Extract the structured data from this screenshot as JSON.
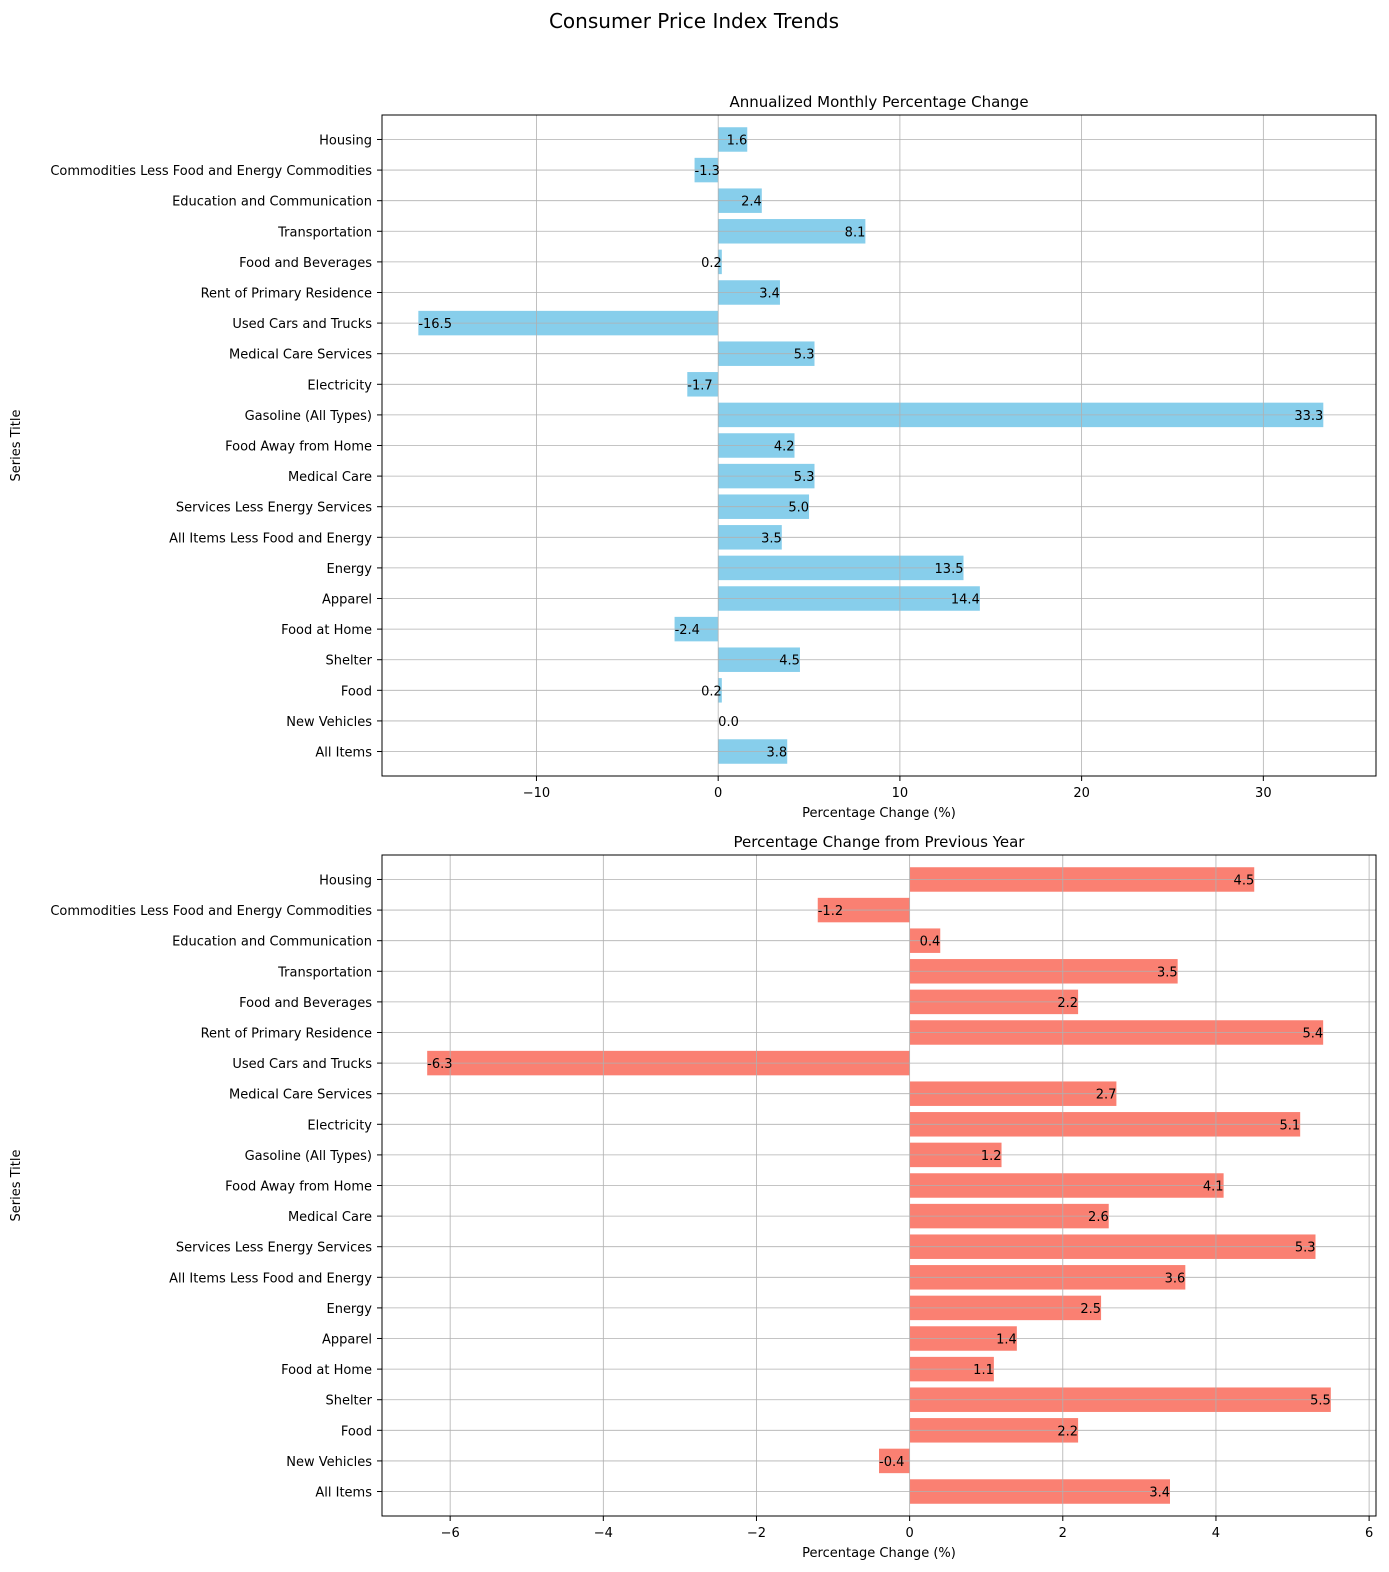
{
  "figure_title": "Consumer Price Index Trends",
  "chart_data": [
    {
      "type": "bar",
      "orientation": "horizontal",
      "title": "Annualized Monthly Percentage Change",
      "xlabel": "Percentage Change (%)",
      "ylabel": "Series Title",
      "color": "#87ceeb",
      "xlim": [
        -18.5,
        36.2
      ],
      "xticks": [
        -10,
        0,
        10,
        20,
        30
      ],
      "xtick_labels": [
        "−10",
        "0",
        "10",
        "20",
        "30"
      ],
      "grid": true,
      "categories": [
        "All Items",
        "New Vehicles",
        "Food",
        "Shelter",
        "Food at Home",
        "Apparel",
        "Energy",
        "All Items Less Food and Energy",
        "Services Less Energy Services",
        "Medical Care",
        "Food Away from Home",
        "Gasoline (All Types)",
        "Electricity",
        "Medical Care Services",
        "Used Cars and Trucks",
        "Rent of Primary Residence",
        "Food and Beverages",
        "Transportation",
        "Education and Communication",
        "Commodities Less Food and Energy Commodities",
        "Housing"
      ],
      "values": [
        3.8,
        0.0,
        0.2,
        4.5,
        -2.4,
        14.4,
        13.5,
        3.5,
        5.0,
        5.3,
        4.2,
        33.3,
        -1.7,
        5.3,
        -16.5,
        3.4,
        0.2,
        8.1,
        2.4,
        -1.3,
        1.6
      ],
      "value_labels": [
        "3.8",
        "0.0",
        "0.2",
        "4.5",
        "-2.4",
        "14.4",
        "13.5",
        "3.5",
        "5.0",
        "5.3",
        "4.2",
        "33.3",
        "-1.7",
        "5.3",
        "-16.5",
        "3.4",
        "0.2",
        "8.1",
        "2.4",
        "-1.3",
        "1.6"
      ]
    },
    {
      "type": "bar",
      "orientation": "horizontal",
      "title": "Percentage Change from Previous Year",
      "xlabel": "Percentage Change (%)",
      "ylabel": "Series Title",
      "color": "#fa8072",
      "xlim": [
        -6.89,
        6.09
      ],
      "xticks": [
        -6,
        -4,
        -2,
        0,
        2,
        4,
        6
      ],
      "xtick_labels": [
        "−6",
        "−4",
        "−2",
        "0",
        "2",
        "4",
        "6"
      ],
      "grid": true,
      "categories": [
        "All Items",
        "New Vehicles",
        "Food",
        "Shelter",
        "Food at Home",
        "Apparel",
        "Energy",
        "All Items Less Food and Energy",
        "Services Less Energy Services",
        "Medical Care",
        "Food Away from Home",
        "Gasoline (All Types)",
        "Electricity",
        "Medical Care Services",
        "Used Cars and Trucks",
        "Rent of Primary Residence",
        "Food and Beverages",
        "Transportation",
        "Education and Communication",
        "Commodities Less Food and Energy Commodities",
        "Housing"
      ],
      "values": [
        3.4,
        -0.4,
        2.2,
        5.5,
        1.1,
        1.4,
        2.5,
        3.6,
        5.3,
        2.6,
        4.1,
        1.2,
        5.1,
        2.7,
        -6.3,
        5.4,
        2.2,
        3.5,
        0.4,
        -1.2,
        4.5
      ],
      "value_labels": [
        "3.4",
        "-0.4",
        "2.2",
        "5.5",
        "1.1",
        "1.4",
        "2.5",
        "3.6",
        "5.3",
        "2.6",
        "4.1",
        "1.2",
        "5.1",
        "2.7",
        "-6.3",
        "5.4",
        "2.2",
        "3.5",
        "0.4",
        "-1.2",
        "4.5"
      ]
    }
  ]
}
